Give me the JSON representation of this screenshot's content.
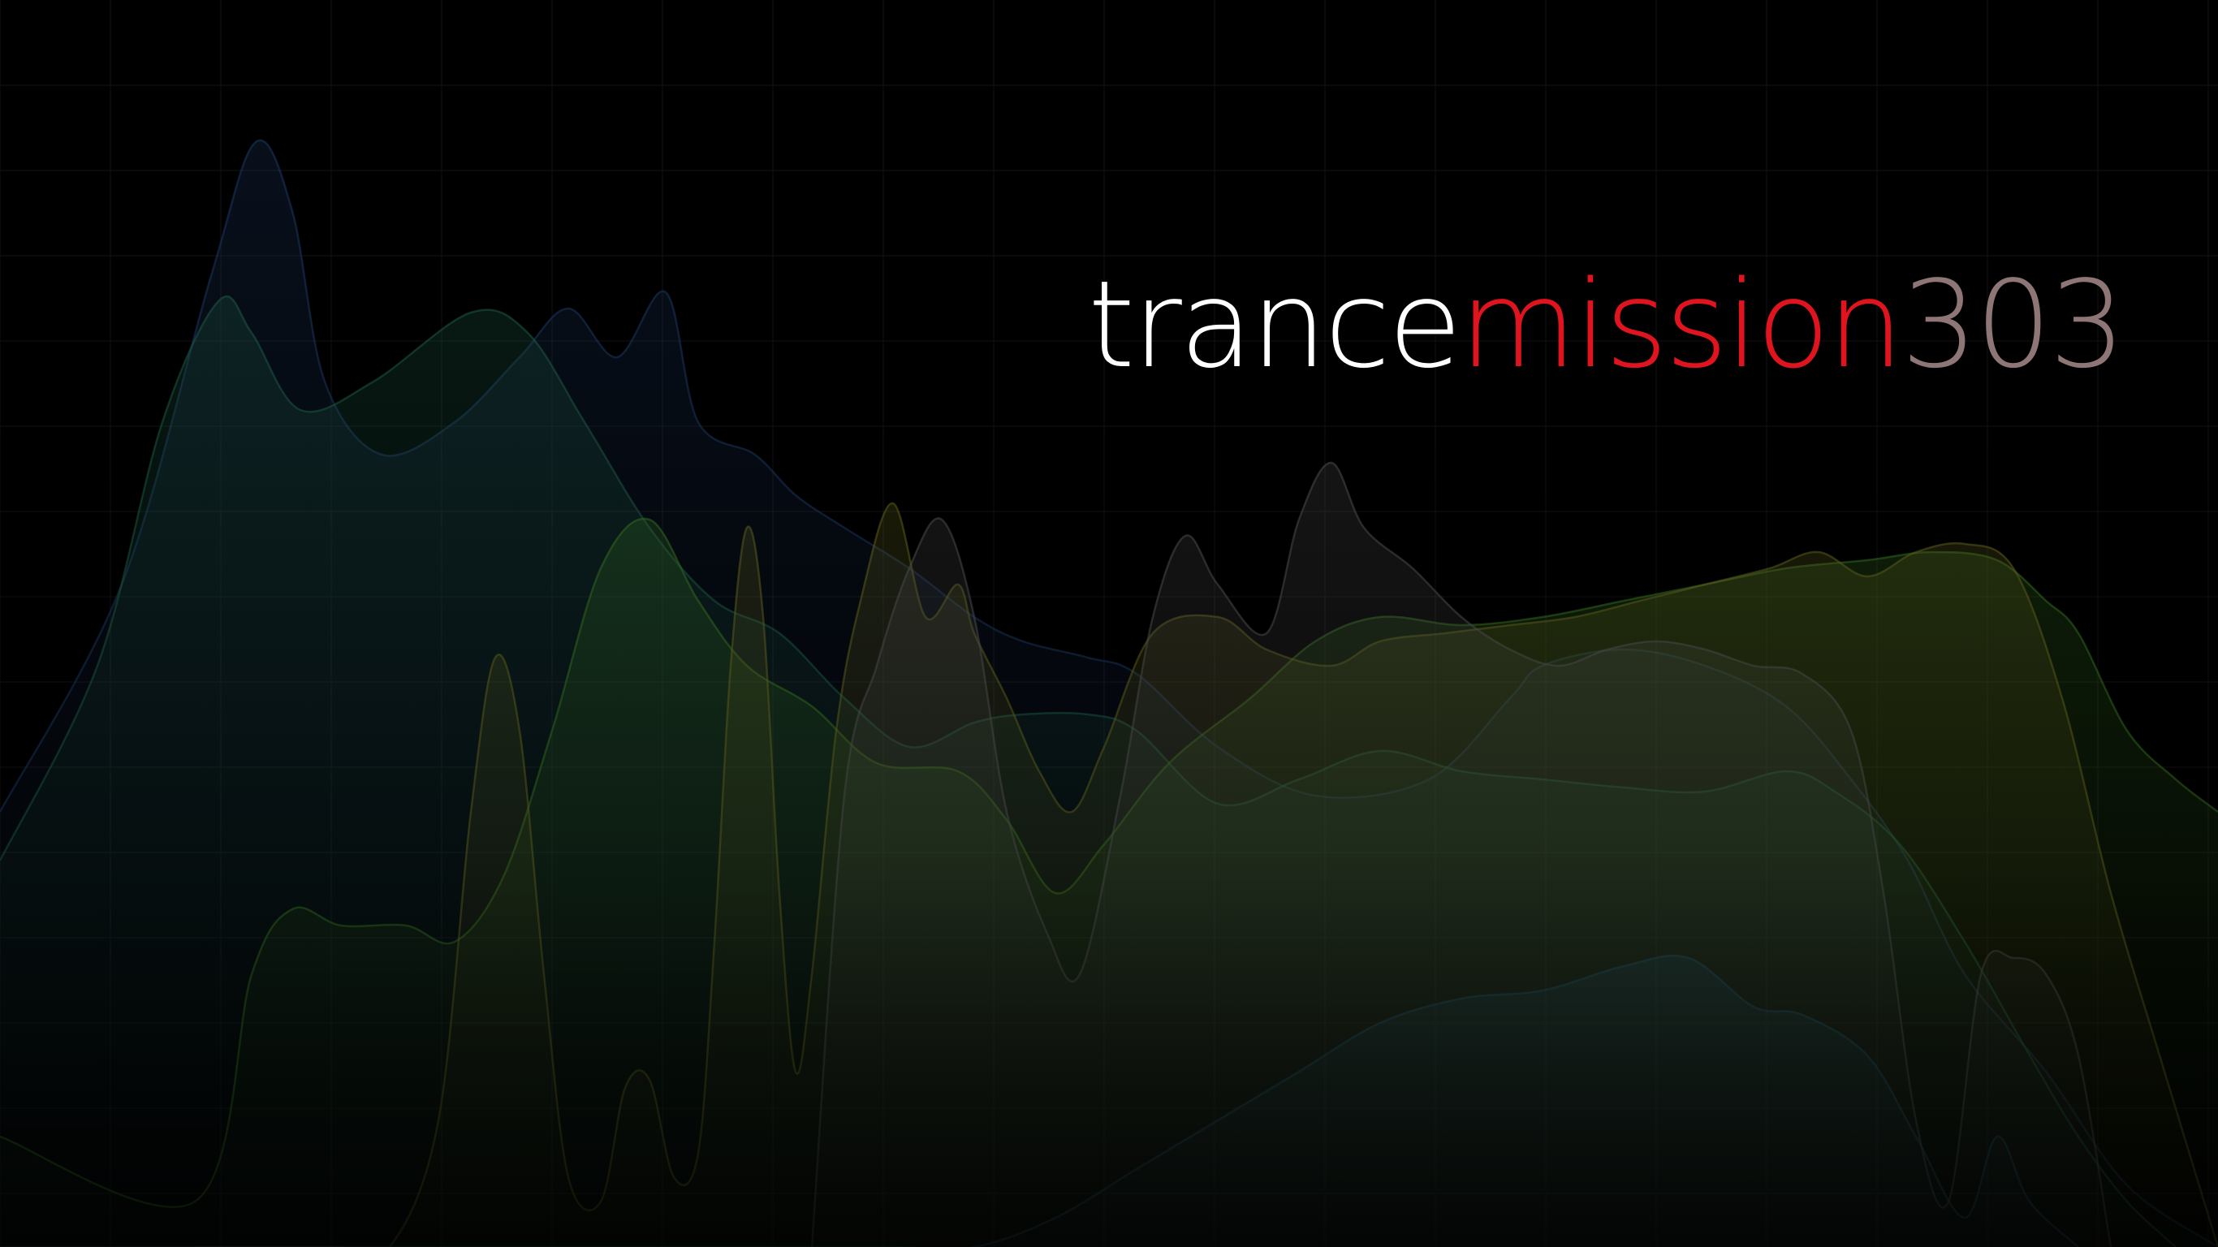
{
  "logo": {
    "part1": "trance",
    "part2": "mission",
    "part3": "303"
  },
  "colors": {
    "background": "#000000",
    "part1": "#ffffff",
    "part2": "#e0141e",
    "part3": "#8f7676",
    "grid": "#141414"
  },
  "background_art": {
    "kind": "overlapping translucent frequency spectrum layers",
    "layer_colors": [
      "#20406a",
      "#1f6a4a",
      "#3c7a28",
      "#6a6a22",
      "#5a5a5a",
      "#2a5a6a"
    ]
  }
}
